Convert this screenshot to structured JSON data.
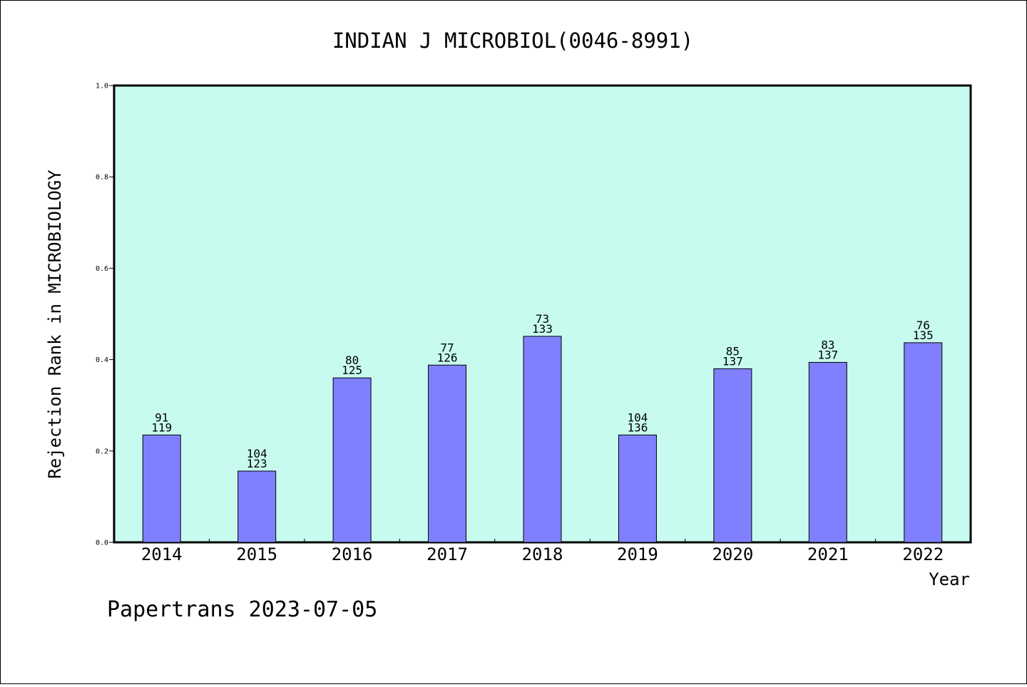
{
  "chart_data": {
    "type": "bar",
    "title": "INDIAN J MICROBIOL(0046-8991)",
    "xlabel": "Year",
    "ylabel": "Rejection Rank in MICROBIOLOGY",
    "ylim": [
      0,
      1.0
    ],
    "yticks": [
      "0.0",
      "0.2",
      "0.4",
      "0.6",
      "0.8",
      "1.0"
    ],
    "ytick_values": [
      0,
      0.2,
      0.4,
      0.6,
      0.8,
      1.0
    ],
    "grid": false,
    "categories": [
      "2014",
      "2015",
      "2016",
      "2017",
      "2018",
      "2019",
      "2020",
      "2021",
      "2022"
    ],
    "values": [
      0.235,
      0.156,
      0.36,
      0.388,
      0.451,
      0.235,
      0.38,
      0.394,
      0.437
    ],
    "rank": [
      "91",
      "104",
      "80",
      "77",
      "73",
      "104",
      "85",
      "83",
      "76"
    ],
    "total": [
      "119",
      "123",
      "125",
      "126",
      "133",
      "136",
      "137",
      "137",
      "135"
    ],
    "colors": {
      "plot_bg": "#c8fbf0",
      "bar_fill": "#8080ff",
      "bar_stroke": "#000000"
    }
  },
  "footer": "Papertrans 2023-07-05"
}
